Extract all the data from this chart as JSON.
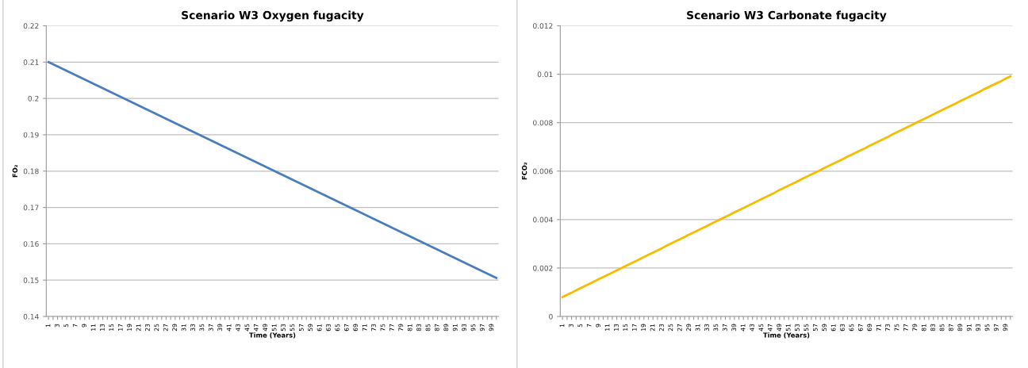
{
  "chart_data": [
    {
      "type": "line",
      "title": "Scenario W3 Oxygen fugacity",
      "xlabel": "Time (Years)",
      "ylabel": "FO₂",
      "ylim": [
        0.14,
        0.22
      ],
      "yticks": [
        0.14,
        0.15,
        0.16,
        0.17,
        0.18,
        0.19,
        0.2,
        0.21,
        0.22
      ],
      "grid": "y",
      "marker": "none",
      "line_style": "solid",
      "categories": [
        "1",
        null,
        "3",
        null,
        "5",
        null,
        "7",
        null,
        "9",
        null,
        "11",
        null,
        "13",
        null,
        "15",
        null,
        "17",
        null,
        "19",
        null,
        "21",
        null,
        "23",
        null,
        "25",
        null,
        "27",
        null,
        "29",
        null,
        "31",
        null,
        "33",
        null,
        "35",
        null,
        "37",
        null,
        "39",
        null,
        "41",
        null,
        "43",
        null,
        "45",
        null,
        "47",
        null,
        "49",
        null,
        "51",
        null,
        "53",
        null,
        "55",
        null,
        "57",
        null,
        "59",
        null,
        "61",
        null,
        "63",
        null,
        "65",
        null,
        "67",
        null,
        "69",
        null,
        "71",
        null,
        "73",
        null,
        "75",
        null,
        "77",
        null,
        "79",
        null,
        "81",
        null,
        "83",
        null,
        "85",
        null,
        "87",
        null,
        "89",
        null,
        "91",
        null,
        "93",
        null,
        "95",
        null,
        "97",
        null,
        "99",
        null
      ],
      "series": [
        {
          "color": "#4a7ebb",
          "values": [
            0.21,
            0.2094,
            0.2088,
            0.2082,
            0.2076,
            0.207,
            0.2064,
            0.2058,
            0.2052,
            0.2046,
            0.204,
            0.2034,
            0.2028,
            0.2022,
            0.2016,
            0.201,
            0.2004,
            0.1998,
            0.1992,
            0.1986,
            0.198,
            0.1974,
            0.1968,
            0.1962,
            0.1956,
            0.195,
            0.1944,
            0.1938,
            0.1932,
            0.1926,
            0.192,
            0.1914,
            0.1908,
            0.1902,
            0.1896,
            0.189,
            0.1884,
            0.1878,
            0.1872,
            0.1866,
            0.186,
            0.1854,
            0.1848,
            0.1842,
            0.1836,
            0.183,
            0.1824,
            0.1818,
            0.1812,
            0.1806,
            0.18,
            0.1794,
            0.1788,
            0.1782,
            0.1776,
            0.177,
            0.1764,
            0.1758,
            0.1752,
            0.1746,
            0.174,
            0.1734,
            0.1728,
            0.1722,
            0.1716,
            0.171,
            0.1704,
            0.1698,
            0.1692,
            0.1686,
            0.168,
            0.1674,
            0.1668,
            0.1662,
            0.1656,
            0.165,
            0.1644,
            0.1638,
            0.1632,
            0.1626,
            0.162,
            0.1614,
            0.1608,
            0.1602,
            0.1596,
            0.159,
            0.1584,
            0.1578,
            0.1572,
            0.1566,
            0.156,
            0.1554,
            0.1548,
            0.1542,
            0.1536,
            0.153,
            0.1524,
            0.1518,
            0.1512,
            0.1506
          ]
        }
      ]
    },
    {
      "type": "line",
      "title": "Scenario W3 Carbonate fugacity",
      "xlabel": "Time (Years)",
      "ylabel": "FCO₂",
      "ylim": [
        0,
        0.012
      ],
      "yticks": [
        0,
        0.002,
        0.004,
        0.006,
        0.008,
        0.01,
        0.012
      ],
      "grid": "y",
      "marker": "none",
      "line_style": "solid",
      "categories": [
        "1",
        null,
        "3",
        null,
        "5",
        null,
        "7",
        null,
        "9",
        null,
        "11",
        null,
        "13",
        null,
        "15",
        null,
        "17",
        null,
        "19",
        null,
        "21",
        null,
        "23",
        null,
        "25",
        null,
        "27",
        null,
        "29",
        null,
        "31",
        null,
        "33",
        null,
        "35",
        null,
        "37",
        null,
        "39",
        null,
        "41",
        null,
        "43",
        null,
        "45",
        null,
        "47",
        null,
        "49",
        null,
        "51",
        null,
        "53",
        null,
        "55",
        null,
        "57",
        null,
        "59",
        null,
        "61",
        null,
        "63",
        null,
        "65",
        null,
        "67",
        null,
        "69",
        null,
        "71",
        null,
        "73",
        null,
        "75",
        null,
        "77",
        null,
        "79",
        null,
        "81",
        null,
        "83",
        null,
        "85",
        null,
        "87",
        null,
        "89",
        null,
        "91",
        null,
        "93",
        null,
        "95",
        null,
        "97",
        null,
        "99",
        null
      ],
      "series": [
        {
          "color": "#f5bd00",
          "values": [
            0.0008,
            0.00089,
            0.00098,
            0.00108,
            0.00117,
            0.00126,
            0.00135,
            0.00144,
            0.00154,
            0.00163,
            0.00172,
            0.00181,
            0.0019,
            0.002,
            0.00209,
            0.00218,
            0.00227,
            0.00236,
            0.00246,
            0.00255,
            0.00264,
            0.00273,
            0.00282,
            0.00292,
            0.00301,
            0.0031,
            0.00319,
            0.00328,
            0.00338,
            0.00347,
            0.00356,
            0.00365,
            0.00374,
            0.00384,
            0.00393,
            0.00402,
            0.00411,
            0.0042,
            0.0043,
            0.00439,
            0.00448,
            0.00457,
            0.00466,
            0.00476,
            0.00485,
            0.00494,
            0.00503,
            0.00512,
            0.00522,
            0.00531,
            0.0054,
            0.00549,
            0.00558,
            0.00568,
            0.00577,
            0.00586,
            0.00595,
            0.00604,
            0.00614,
            0.00623,
            0.00632,
            0.00641,
            0.0065,
            0.0066,
            0.00669,
            0.00678,
            0.00687,
            0.00696,
            0.00706,
            0.00715,
            0.00724,
            0.00733,
            0.00742,
            0.00752,
            0.00761,
            0.0077,
            0.00779,
            0.00788,
            0.00798,
            0.00807,
            0.00816,
            0.00825,
            0.00834,
            0.00844,
            0.00853,
            0.00862,
            0.00871,
            0.0088,
            0.0089,
            0.00899,
            0.00908,
            0.00917,
            0.00926,
            0.00936,
            0.00945,
            0.00954,
            0.00963,
            0.00972,
            0.00982,
            0.00991
          ]
        }
      ]
    }
  ]
}
